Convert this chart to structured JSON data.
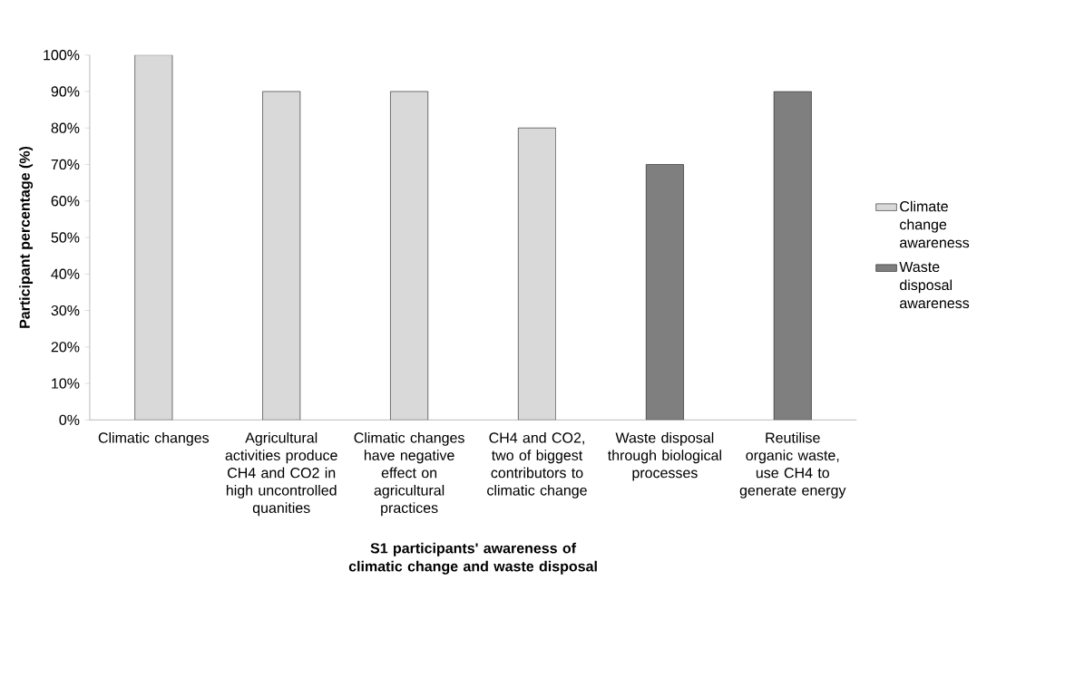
{
  "chart_data": {
    "type": "bar",
    "xlabel": "S1 participants' awareness of climatic change and waste disposal",
    "ylabel": "Participant percentage (%)",
    "categories": [
      "Climatic changes",
      "Agricultural activities produce CH4 and CO2 in high uncontrolled quanities",
      "Climatic changes have negative effect on agricultural practices",
      "CH4 and CO2, two of biggest contributors to climatic change",
      "Waste disposal through biological processes",
      "Reutilise organic waste, use CH4 to generate energy"
    ],
    "series": [
      {
        "name": "Climate change awareness",
        "color": "#d9d9d9",
        "values": [
          100,
          90,
          90,
          80,
          null,
          null
        ]
      },
      {
        "name": "Waste disposal awareness",
        "color": "#7f7f7f",
        "values": [
          null,
          null,
          null,
          null,
          70,
          90
        ]
      }
    ],
    "ylim": [
      0,
      100
    ],
    "yticks": [
      {
        "value": 0,
        "label": "0%"
      },
      {
        "value": 10,
        "label": "10%"
      },
      {
        "value": 20,
        "label": "20%"
      },
      {
        "value": 30,
        "label": "30%"
      },
      {
        "value": 40,
        "label": "40%"
      },
      {
        "value": 50,
        "label": "50%"
      },
      {
        "value": 60,
        "label": "60%"
      },
      {
        "value": 70,
        "label": "70%"
      },
      {
        "value": 80,
        "label": "80%"
      },
      {
        "value": 90,
        "label": "90%"
      },
      {
        "value": 100,
        "label": "100%"
      }
    ],
    "grid": false,
    "legend": "right"
  }
}
